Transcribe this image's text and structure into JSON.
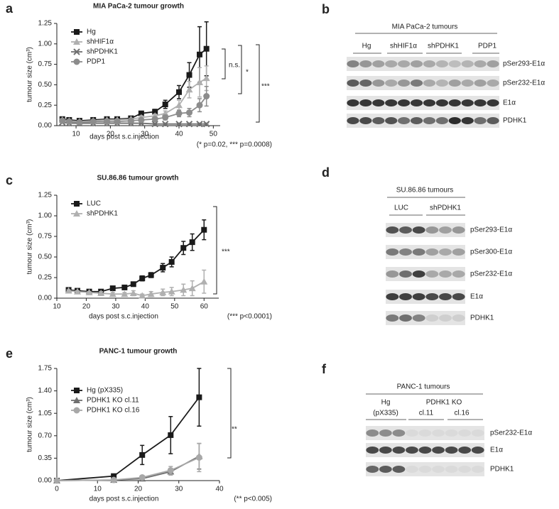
{
  "chart_data": [
    {
      "type": "line",
      "letter": "a",
      "title": "MIA PaCa-2 tumour growth",
      "xlabel": "days post s.c.injection",
      "ylabel": "tumour size (cm³)",
      "xlim": [
        4.4,
        52
      ],
      "xticks": [
        10,
        20,
        30,
        40,
        50
      ],
      "ylim": [
        0,
        1.25
      ],
      "yticks": [
        {
          "value": 0,
          "label": "0.00"
        },
        {
          "value": 0.25,
          "label": "0.25"
        },
        {
          "value": 0.5,
          "label": "0.50"
        },
        {
          "value": 0.75,
          "label": "0.75"
        },
        {
          "value": 1,
          "label": "1.00"
        },
        {
          "value": 1.25,
          "label": "1.25"
        }
      ],
      "x": [
        6,
        8,
        11,
        15,
        19,
        22,
        26,
        29,
        33,
        36,
        40,
        43,
        46,
        48
      ],
      "series": [
        {
          "name": "Hg",
          "color": "#1a1a1a",
          "marker": "square",
          "values": [
            0.08,
            0.07,
            0.06,
            0.07,
            0.08,
            0.08,
            0.09,
            0.15,
            0.17,
            0.26,
            0.41,
            0.62,
            0.87,
            0.94
          ],
          "errors": [
            0.02,
            0.02,
            0.01,
            0.01,
            0.01,
            0.01,
            0.01,
            0.02,
            0.03,
            0.05,
            0.08,
            0.15,
            0.34,
            0.33
          ]
        },
        {
          "name": "shHIF1α",
          "color": "#b0b0b0",
          "marker": "triangle",
          "values": [
            0.07,
            0.06,
            0.05,
            0.06,
            0.07,
            0.07,
            0.08,
            0.1,
            0.12,
            0.15,
            0.25,
            0.44,
            0.53,
            0.58
          ],
          "errors": [
            0.01,
            0.01,
            0.01,
            0.01,
            0.01,
            0.01,
            0.01,
            0.02,
            0.02,
            0.03,
            0.06,
            0.1,
            0.18,
            0.15
          ]
        },
        {
          "name": "shPDHK1",
          "color": "#707070",
          "marker": "cross",
          "values": [
            0.04,
            0.03,
            0.03,
            0.03,
            0.03,
            0.03,
            0.03,
            0.03,
            0.02,
            0.02,
            0.02,
            0.02,
            0.02,
            0.02
          ],
          "errors": [
            0.01,
            0.01,
            0.01,
            0.01,
            0.01,
            0.01,
            0.01,
            0.01,
            0.01,
            0.01,
            0.01,
            0.01,
            0.01,
            0.01
          ]
        },
        {
          "name": "PDP1",
          "color": "#8c8c8c",
          "marker": "circle",
          "values": [
            0.06,
            0.05,
            0.04,
            0.05,
            0.05,
            0.05,
            0.06,
            0.07,
            0.08,
            0.1,
            0.15,
            0.16,
            0.25,
            0.36
          ],
          "errors": [
            0.01,
            0.01,
            0.01,
            0.01,
            0.01,
            0.01,
            0.01,
            0.02,
            0.02,
            0.03,
            0.04,
            0.05,
            0.08,
            0.12
          ]
        }
      ],
      "annotations": [
        "n.s.",
        "*",
        "***",
        "(* p=0.02, *** p=0.0008)"
      ]
    },
    {
      "type": "line",
      "letter": "c",
      "title": "SU.86.86 tumour growth",
      "xlabel": "days post s.c.injection",
      "ylabel": "tumour size (cm³)",
      "xlim": [
        10,
        65
      ],
      "xticks": [
        10,
        20,
        30,
        40,
        50,
        60
      ],
      "ylim": [
        0,
        1.25
      ],
      "yticks": [
        {
          "value": 0,
          "label": "0.00"
        },
        {
          "value": 0.25,
          "label": "0.25"
        },
        {
          "value": 0.5,
          "label": "0.50"
        },
        {
          "value": 0.75,
          "label": "0.75"
        },
        {
          "value": 1,
          "label": "1.00"
        },
        {
          "value": 1.25,
          "label": "1.25"
        }
      ],
      "x": [
        14,
        17,
        21,
        25,
        29,
        33,
        36,
        39,
        42,
        46,
        49,
        53,
        56,
        60
      ],
      "series": [
        {
          "name": "LUC",
          "color": "#1a1a1a",
          "marker": "square",
          "values": [
            0.1,
            0.09,
            0.08,
            0.08,
            0.12,
            0.13,
            0.17,
            0.24,
            0.28,
            0.37,
            0.44,
            0.61,
            0.68,
            0.83
          ],
          "errors": [
            0.01,
            0.01,
            0.01,
            0.01,
            0.01,
            0.02,
            0.02,
            0.03,
            0.03,
            0.05,
            0.06,
            0.08,
            0.1,
            0.12
          ]
        },
        {
          "name": "shPDHK1",
          "color": "#b0b0b0",
          "marker": "triangle",
          "values": [
            0.09,
            0.08,
            0.07,
            0.06,
            0.05,
            0.05,
            0.06,
            0.03,
            0.05,
            0.07,
            0.08,
            0.1,
            0.12,
            0.2
          ],
          "errors": [
            0.01,
            0.01,
            0.01,
            0.02,
            0.02,
            0.02,
            0.03,
            0.02,
            0.03,
            0.04,
            0.05,
            0.07,
            0.09,
            0.14
          ]
        }
      ],
      "annotations": [
        "***",
        "(*** p<0.0001)"
      ]
    },
    {
      "type": "line",
      "letter": "e",
      "title": "PANC-1 tumour growth",
      "xlabel": "days post s.c.injection",
      "ylabel": "tumour size (cm³)",
      "xlim": [
        0,
        40
      ],
      "xticks": [
        0,
        10,
        20,
        30,
        40
      ],
      "ylim": [
        0,
        1.75
      ],
      "yticks": [
        {
          "value": 0,
          "label": "0.00"
        },
        {
          "value": 0.35,
          "label": "0.35"
        },
        {
          "value": 0.7,
          "label": "0.70"
        },
        {
          "value": 1.05,
          "label": "1.05"
        },
        {
          "value": 1.4,
          "label": "1.40"
        },
        {
          "value": 1.75,
          "label": "1.75"
        }
      ],
      "x": [
        0,
        14,
        21,
        28,
        35
      ],
      "series": [
        {
          "name": "Hg (pX335)",
          "color": "#1a1a1a",
          "marker": "square",
          "values": [
            0,
            0.07,
            0.4,
            0.71,
            1.3
          ],
          "errors": [
            0,
            0.02,
            0.15,
            0.29,
            0.45
          ]
        },
        {
          "name": "PDHK1 KO cl.11",
          "color": "#707070",
          "marker": "triangle",
          "values": [
            0,
            0.01,
            0.03,
            0.14,
            0.38
          ],
          "errors": [
            0,
            0.01,
            0.02,
            0.05,
            0.2
          ]
        },
        {
          "name": "PDHK1 KO cl.16",
          "color": "#a8a8a8",
          "marker": "circle",
          "values": [
            0,
            0.01,
            0.05,
            0.16,
            0.36
          ],
          "errors": [
            0,
            0.01,
            0.02,
            0.06,
            0.22
          ]
        }
      ],
      "annotations": [
        "**",
        "(** p<0.005)"
      ]
    }
  ],
  "blots": [
    {
      "letter": "b",
      "title": "MIA PaCa-2 tumours",
      "groups": [
        "Hg",
        "shHIF1α",
        "shPDHK1",
        "PDP1"
      ],
      "rows": [
        "pSer293-E1α",
        "pSer232-E1α",
        "E1α",
        "PDHK1"
      ]
    },
    {
      "letter": "d",
      "title": "SU.86.86 tumours",
      "groups": [
        "LUC",
        "shPDHK1"
      ],
      "rows": [
        "pSer293-E1α",
        "pSer300-E1α",
        "pSer232-E1α",
        "E1α",
        "PDHK1"
      ]
    },
    {
      "letter": "f",
      "title": "PANC-1 tumours",
      "groups": [
        "Hg",
        "PDHK1 KO"
      ],
      "subgroups": [
        "(pX335)",
        "cl.11",
        "cl.16"
      ],
      "rows": [
        "pSer232-E1α",
        "E1α",
        "PDHK1"
      ]
    }
  ]
}
